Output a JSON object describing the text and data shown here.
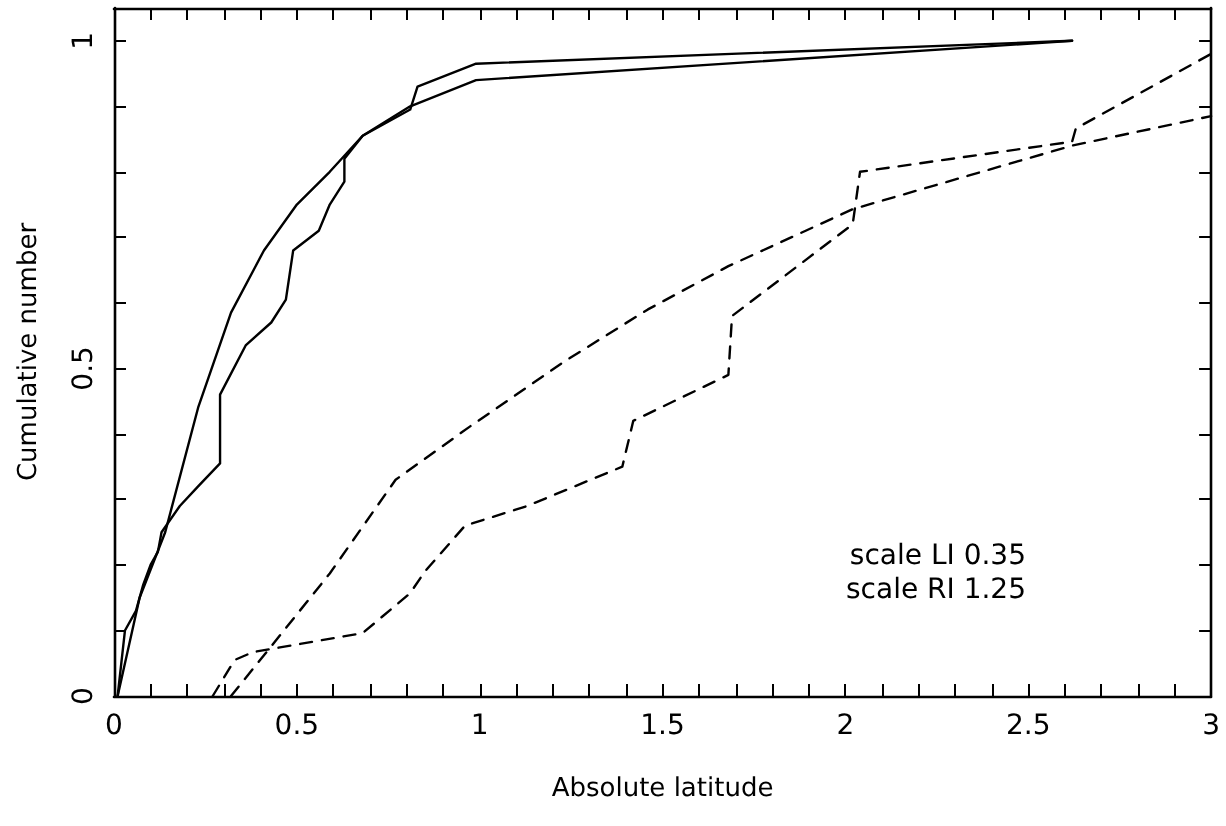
{
  "chart_data": {
    "type": "line",
    "xlabel": "Absolute latitude",
    "ylabel": "Cumulative number",
    "xlim": [
      0,
      3
    ],
    "ylim": [
      0,
      1.05
    ],
    "xticks": [
      0,
      {
        "value": 0.1,
        "label": null
      },
      {
        "value": 0.2,
        "label": null
      },
      {
        "value": 0.3,
        "label": null
      },
      {
        "value": 0.4,
        "label": null
      },
      0.5,
      {
        "value": 0.6,
        "label": null
      },
      {
        "value": 0.7,
        "label": null
      },
      {
        "value": 0.8,
        "label": null
      },
      {
        "value": 0.9,
        "label": null
      },
      1,
      {
        "value": 1.1,
        "label": null
      },
      {
        "value": 1.2,
        "label": null
      },
      {
        "value": 1.3,
        "label": null
      },
      {
        "value": 1.4,
        "label": null
      },
      1.5,
      {
        "value": 1.6,
        "label": null
      },
      {
        "value": 1.7,
        "label": null
      },
      {
        "value": 1.8,
        "label": null
      },
      {
        "value": 1.9,
        "label": null
      },
      2,
      {
        "value": 2.1,
        "label": null
      },
      {
        "value": 2.2,
        "label": null
      },
      {
        "value": 2.3,
        "label": null
      },
      {
        "value": 2.4,
        "label": null
      },
      2.5,
      {
        "value": 2.6,
        "label": null
      },
      {
        "value": 2.7,
        "label": null
      },
      {
        "value": 2.8,
        "label": null
      },
      {
        "value": 2.9,
        "label": null
      },
      3
    ],
    "yticks": [
      0,
      {
        "value": 0.1,
        "label": null
      },
      {
        "value": 0.2,
        "label": null
      },
      {
        "value": 0.3,
        "label": null
      },
      {
        "value": 0.4,
        "label": null
      },
      0.5,
      {
        "value": 0.6,
        "label": null
      },
      {
        "value": 0.7,
        "label": null
      },
      {
        "value": 0.8,
        "label": null
      },
      {
        "value": 0.9,
        "label": null
      },
      1
    ],
    "grid": false,
    "marker": "none",
    "annotations": [
      "scale LI 0.35",
      "scale RI 1.25"
    ],
    "series": [
      {
        "color": "#000000",
        "line_style": "solid",
        "x": [
          0.01,
          0.07,
          0.14,
          0.23,
          0.32,
          0.41,
          0.5,
          0.59,
          0.68,
          0.81,
          0.99,
          2.62
        ],
        "values": [
          0,
          0.15,
          0.25,
          0.44,
          0.585,
          0.68,
          0.75,
          0.8,
          0.855,
          0.9,
          0.94,
          1
        ]
      },
      {
        "color": "#000000",
        "line_style": "solid",
        "x": [
          0.01,
          0.03,
          0.06,
          0.08,
          0.1,
          0.12,
          0.13,
          0.18,
          0.23,
          0.29,
          0.29,
          0.36,
          0.43,
          0.47,
          0.49,
          0.56,
          0.59,
          0.63,
          0.63,
          0.68,
          0.81,
          0.83,
          0.99,
          2.62
        ],
        "values": [
          0,
          0.1,
          0.13,
          0.17,
          0.2,
          0.22,
          0.25,
          0.29,
          0.32,
          0.355,
          0.46,
          0.535,
          0.57,
          0.605,
          0.68,
          0.71,
          0.75,
          0.785,
          0.82,
          0.855,
          0.895,
          0.93,
          0.965,
          1
        ]
      },
      {
        "color": "#000000",
        "line_style": "dashed",
        "x": [
          0.32,
          0.43,
          0.59,
          0.77,
          0.97,
          1.23,
          1.46,
          1.68,
          2.02,
          2.62,
          3
        ],
        "values": [
          0,
          0.076,
          0.187,
          0.33,
          0.41,
          0.51,
          0.59,
          0.656,
          0.743,
          0.84,
          0.885
        ]
      },
      {
        "color": "#000000",
        "line_style": "dashed",
        "x": [
          0.27,
          0.33,
          0.38,
          0.68,
          0.81,
          0.85,
          0.96,
          1.13,
          1.39,
          1.42,
          1.68,
          1.69,
          2.02,
          2.04,
          2.62,
          2.63,
          3
        ],
        "values": [
          0,
          0.055,
          0.067,
          0.096,
          0.157,
          0.19,
          0.26,
          0.29,
          0.35,
          0.42,
          0.49,
          0.58,
          0.72,
          0.8,
          0.846,
          0.866,
          0.98
        ]
      }
    ]
  }
}
